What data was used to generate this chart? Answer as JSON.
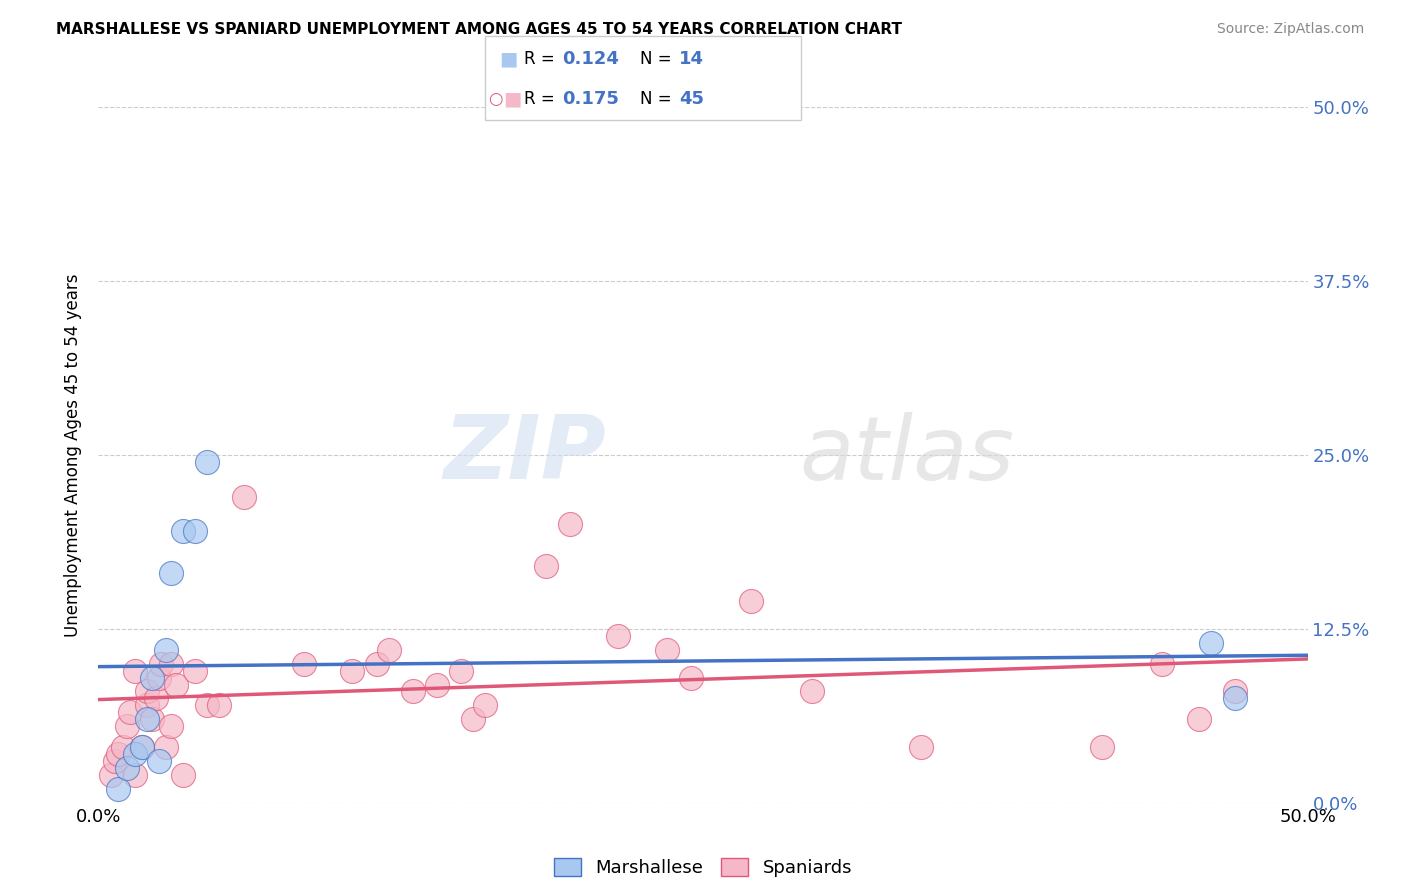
{
  "title": "MARSHALLESE VS SPANIARD UNEMPLOYMENT AMONG AGES 45 TO 54 YEARS CORRELATION CHART",
  "source": "Source: ZipAtlas.com",
  "ylabel": "Unemployment Among Ages 45 to 54 years",
  "xlim": [
    0,
    0.5
  ],
  "ylim": [
    0,
    0.5
  ],
  "xtick_labels": [
    "0.0%",
    "50.0%"
  ],
  "xtick_vals": [
    0,
    0.5
  ],
  "ytick_labels_right": [
    "0.0%",
    "12.5%",
    "25.0%",
    "37.5%",
    "50.0%"
  ],
  "ytick_vals": [
    0,
    0.125,
    0.25,
    0.375,
    0.5
  ],
  "blue_R": "0.124",
  "blue_N": "14",
  "pink_R": "0.175",
  "pink_N": "45",
  "blue_color": "#a8c8f0",
  "pink_color": "#f4b8c8",
  "blue_line_color": "#4472c4",
  "pink_line_color": "#e05878",
  "blue_edge_color": "#4472c4",
  "pink_edge_color": "#e05878",
  "watermark_zip": "ZIP",
  "watermark_atlas": "atlas",
  "blue_points_x": [
    0.008,
    0.012,
    0.015,
    0.018,
    0.02,
    0.022,
    0.025,
    0.028,
    0.03,
    0.035,
    0.04,
    0.045,
    0.46,
    0.47
  ],
  "blue_points_y": [
    0.01,
    0.025,
    0.035,
    0.04,
    0.06,
    0.09,
    0.03,
    0.11,
    0.165,
    0.195,
    0.195,
    0.245,
    0.115,
    0.075
  ],
  "pink_points_x": [
    0.005,
    0.007,
    0.008,
    0.01,
    0.012,
    0.013,
    0.015,
    0.015,
    0.018,
    0.02,
    0.02,
    0.022,
    0.024,
    0.025,
    0.026,
    0.028,
    0.03,
    0.03,
    0.032,
    0.035,
    0.04,
    0.045,
    0.05,
    0.06,
    0.085,
    0.105,
    0.115,
    0.12,
    0.13,
    0.14,
    0.15,
    0.155,
    0.16,
    0.185,
    0.195,
    0.215,
    0.235,
    0.245,
    0.27,
    0.295,
    0.34,
    0.415,
    0.44,
    0.455,
    0.47
  ],
  "pink_points_y": [
    0.02,
    0.03,
    0.035,
    0.04,
    0.055,
    0.065,
    0.02,
    0.095,
    0.04,
    0.07,
    0.08,
    0.06,
    0.075,
    0.09,
    0.1,
    0.04,
    0.055,
    0.1,
    0.085,
    0.02,
    0.095,
    0.07,
    0.07,
    0.22,
    0.1,
    0.095,
    0.1,
    0.11,
    0.08,
    0.085,
    0.095,
    0.06,
    0.07,
    0.17,
    0.2,
    0.12,
    0.11,
    0.09,
    0.145,
    0.08,
    0.04,
    0.04,
    0.1,
    0.06,
    0.08
  ],
  "background_color": "#ffffff",
  "grid_color": "#cccccc",
  "legend_label_blue": "Marshallese",
  "legend_label_pink": "Spaniards"
}
